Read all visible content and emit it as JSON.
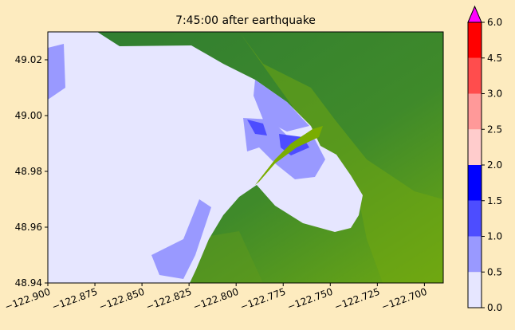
{
  "chart_data": {
    "type": "map",
    "title": "7:45:00 after earthquake",
    "xlim": [
      -122.9,
      -122.69
    ],
    "ylim": [
      48.94,
      49.03
    ],
    "xticks": [
      {
        "value": -122.9,
        "label": "−122.900"
      },
      {
        "value": -122.875,
        "label": "−122.875"
      },
      {
        "value": -122.85,
        "label": "−122.850"
      },
      {
        "value": -122.825,
        "label": "−122.825"
      },
      {
        "value": -122.8,
        "label": "−122.800"
      },
      {
        "value": -122.775,
        "label": "−122.775"
      },
      {
        "value": -122.75,
        "label": "−122.750"
      },
      {
        "value": -122.725,
        "label": "−122.725"
      },
      {
        "value": -122.7,
        "label": "−122.700"
      }
    ],
    "yticks": [
      48.94,
      48.96,
      48.98,
      {
        "value": 49.0,
        "label": "49.00"
      },
      49.02
    ],
    "colorbar": {
      "levels": [
        {
          "value": 0,
          "label": "0.0"
        },
        {
          "value": 0.5,
          "label": "0.5"
        },
        {
          "value": 1,
          "label": "1.0"
        },
        {
          "value": 1.5,
          "label": "1.5"
        },
        {
          "value": 2,
          "label": "2.0"
        },
        {
          "value": 2.5,
          "label": "2.5"
        },
        {
          "value": 3,
          "label": "3.0"
        },
        {
          "value": 4.5,
          "label": "4.5"
        },
        {
          "value": 6,
          "label": "6.0"
        }
      ],
      "colors": [
        "#e6e6ff",
        "#9999ff",
        "#4d4dff",
        "#0000ff",
        "#ffcccc",
        "#ff9999",
        "#ff4d4d",
        "#ff0000"
      ],
      "over_color": "#ff00ff"
    }
  }
}
